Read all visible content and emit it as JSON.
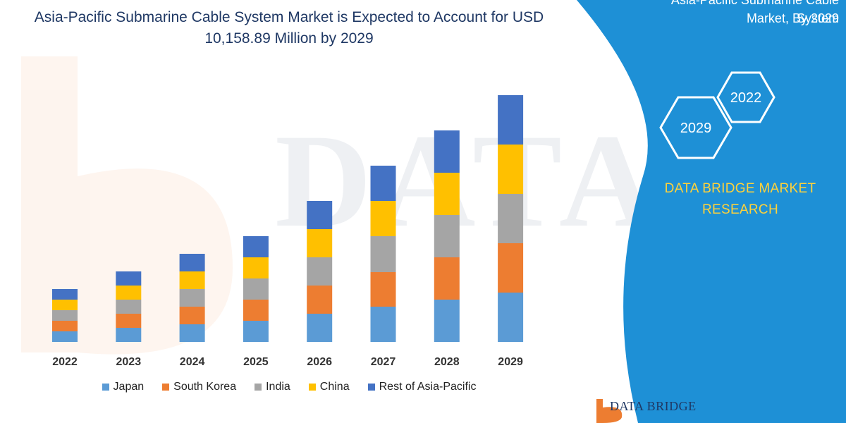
{
  "header": {
    "title_line1": "Asia-Pacific Submarine Cable System Market is Expected to Account for USD",
    "title_line2": "10,158.89 Million by 2029"
  },
  "banner": {
    "line1": "Asia-Pacific Submarine Cable System",
    "line2": "Market, By 2029",
    "hex_top_label": "2022",
    "hex_bottom_label": "2029",
    "brand_line1": "DATA BRIDGE MARKET",
    "brand_line2": "RESEARCH"
  },
  "logo": {
    "text": "DATA BRIDGE"
  },
  "colors": {
    "banner_blue": "#1e90d6",
    "brand_yellow": "#ffd23a",
    "title_navy": "#1f3864"
  },
  "chart_data": {
    "type": "bar",
    "stacked": true,
    "title": "Asia-Pacific Submarine Cable System Market is Expected to Account for USD 10,158.89 Million by 2029",
    "categories": [
      "2022",
      "2023",
      "2024",
      "2025",
      "2026",
      "2027",
      "2028",
      "2029"
    ],
    "series": [
      {
        "name": "Japan",
        "color": "#5b9bd5",
        "values": [
          15,
          20,
          25,
          30,
          40,
          50,
          60,
          70
        ]
      },
      {
        "name": "South Korea",
        "color": "#ed7d31",
        "values": [
          15,
          20,
          25,
          30,
          40,
          49,
          60,
          70
        ]
      },
      {
        "name": "India",
        "color": "#a5a5a5",
        "values": [
          15,
          20,
          25,
          30,
          40,
          51,
          60,
          70
        ]
      },
      {
        "name": "China",
        "color": "#ffc000",
        "values": [
          15,
          20,
          25,
          30,
          40,
          50,
          60,
          70
        ]
      },
      {
        "name": "Rest of Asia-Pacific",
        "color": "#4472c4",
        "values": [
          15,
          20,
          25,
          30,
          40,
          50,
          60,
          70
        ]
      }
    ],
    "ylim": [
      0,
      350
    ],
    "grid": false,
    "legend_position": "bottom"
  }
}
